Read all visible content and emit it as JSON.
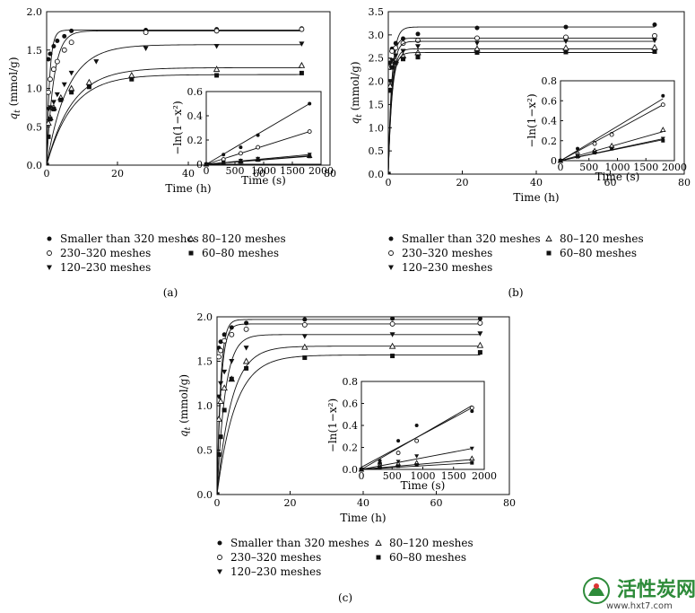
{
  "chart_data": [
    {
      "panel": "(a)",
      "type": "scatter",
      "xlabel": "Time (h)",
      "ylabel_base": "q",
      "ylabel_sub": "t",
      "ylabel_unit": " (mmol/g)",
      "xlim": [
        0,
        80
      ],
      "ylim": [
        0,
        2.0
      ],
      "xticks": [
        0,
        20,
        40,
        60,
        80
      ],
      "yticks": [
        0.0,
        0.5,
        1.0,
        1.5,
        2.0
      ],
      "ytick_labels": [
        "0.0",
        "0.5",
        "1.0",
        "1.5",
        "2.0"
      ],
      "series": [
        {
          "name": "Smaller than 320 meshes",
          "marker": "circle-filled",
          "x": [
            0,
            0.5,
            1,
            2,
            3,
            5,
            7,
            28,
            48,
            72
          ],
          "y": [
            0.0,
            1.38,
            1.45,
            1.55,
            1.62,
            1.68,
            1.75,
            1.76,
            1.77,
            1.78
          ],
          "fit": {
            "qe": 1.76,
            "k": 1.2
          }
        },
        {
          "name": "230–320 meshes",
          "marker": "circle-open",
          "x": [
            0,
            0.5,
            1,
            2,
            3,
            5,
            7,
            28,
            48,
            72
          ],
          "y": [
            0.0,
            0.95,
            1.12,
            1.25,
            1.35,
            1.5,
            1.6,
            1.73,
            1.75,
            1.77
          ],
          "fit": {
            "qe": 1.75,
            "k": 0.5
          }
        },
        {
          "name": "120–230 meshes",
          "marker": "triangle-down-filled",
          "x": [
            0,
            0.5,
            1,
            2,
            3,
            5,
            7,
            14,
            28,
            48,
            72
          ],
          "y": [
            0.0,
            0.73,
            0.75,
            0.82,
            0.92,
            1.05,
            1.2,
            1.35,
            1.52,
            1.55,
            1.58
          ],
          "fit": {
            "qe": 1.57,
            "k": 0.17
          }
        },
        {
          "name": "80–120 meshes",
          "marker": "triangle-up-open",
          "x": [
            0,
            0.5,
            1,
            2,
            4,
            7,
            12,
            24,
            48,
            72
          ],
          "y": [
            0.0,
            0.55,
            0.62,
            0.75,
            0.88,
            1.0,
            1.08,
            1.17,
            1.25,
            1.3
          ],
          "fit": {
            "qe": 1.27,
            "k": 0.14
          }
        },
        {
          "name": "60–80 meshes",
          "marker": "square-filled",
          "x": [
            0,
            0.5,
            1,
            2,
            4,
            7,
            12,
            24,
            48,
            72
          ],
          "y": [
            0.0,
            0.37,
            0.6,
            0.73,
            0.85,
            0.95,
            1.02,
            1.12,
            1.17,
            1.2
          ],
          "fit": {
            "qe": 1.18,
            "k": 0.14
          }
        }
      ],
      "inset": {
        "xlabel": "Time (s)",
        "ylabel": "−ln(1−x²)",
        "xlim": [
          0,
          2000
        ],
        "ylim": [
          0,
          0.6
        ],
        "xticks": [
          0,
          500,
          1000,
          1500,
          2000
        ],
        "yticks": [
          0,
          0.2,
          0.4,
          0.6
        ],
        "ytick_labels": [
          "0",
          "0.2",
          "0.4",
          "0.6"
        ],
        "x": [
          0,
          300,
          600,
          900,
          1800
        ],
        "series": [
          {
            "marker": "circle-filled",
            "y": [
              0,
              0.08,
              0.14,
              0.24,
              0.5
            ],
            "fit": [
              0,
              0.5
            ]
          },
          {
            "marker": "circle-open",
            "y": [
              0,
              0.04,
              0.09,
              0.14,
              0.27
            ],
            "fit": [
              0,
              0.27
            ]
          },
          {
            "marker": "triangle-down-filled",
            "y": [
              0,
              0.015,
              0.03,
              0.045,
              0.08
            ],
            "fit": [
              0,
              0.08
            ]
          },
          {
            "marker": "triangle-up-open",
            "y": [
              0,
              0.012,
              0.025,
              0.04,
              0.07
            ],
            "fit": [
              0,
              0.07
            ]
          },
          {
            "marker": "square-filled",
            "y": [
              0,
              0.01,
              0.02,
              0.035,
              0.065
            ],
            "fit": [
              0,
              0.065
            ]
          }
        ]
      }
    },
    {
      "panel": "(b)",
      "type": "scatter",
      "xlabel": "Time (h)",
      "ylabel_base": "q",
      "ylabel_sub": "t",
      "ylabel_unit": " (mmol/g)",
      "xlim": [
        0,
        80
      ],
      "ylim": [
        0,
        3.5
      ],
      "xticks": [
        0,
        20,
        40,
        60,
        80
      ],
      "yticks": [
        0.0,
        0.5,
        1.0,
        1.5,
        2.0,
        2.5,
        3.0,
        3.5
      ],
      "ytick_labels": [
        "0.0",
        "0.5",
        "1.0",
        "1.5",
        "2.0",
        "2.5",
        "3.0",
        "3.5"
      ],
      "series": [
        {
          "name": "Smaller than 320 meshes",
          "marker": "circle-filled",
          "x": [
            0,
            0.5,
            1,
            2,
            4,
            8,
            24,
            48,
            72
          ],
          "y": [
            0.0,
            2.4,
            2.7,
            2.82,
            2.92,
            3.02,
            3.15,
            3.17,
            3.22
          ],
          "fit": {
            "qe": 3.17,
            "k": 1.0
          }
        },
        {
          "name": "230–320 meshes",
          "marker": "circle-open",
          "x": [
            0,
            0.5,
            1,
            2,
            4,
            8,
            24,
            48,
            72
          ],
          "y": [
            0.0,
            2.3,
            2.65,
            2.72,
            2.82,
            2.88,
            2.93,
            2.95,
            2.98
          ],
          "fit": {
            "qe": 2.93,
            "k": 1.2
          }
        },
        {
          "name": "120–230 meshes",
          "marker": "triangle-down-filled",
          "x": [
            0,
            0.5,
            1,
            2,
            4,
            8,
            24,
            48,
            72
          ],
          "y": [
            0.0,
            2.0,
            2.45,
            2.55,
            2.65,
            2.75,
            2.82,
            2.86,
            2.88
          ],
          "fit": {
            "qe": 2.86,
            "k": 1.0
          }
        },
        {
          "name": "80–120 meshes",
          "marker": "triangle-up-open",
          "x": [
            0,
            0.5,
            1,
            2,
            4,
            8,
            24,
            48,
            72
          ],
          "y": [
            0.0,
            1.9,
            2.35,
            2.45,
            2.55,
            2.62,
            2.7,
            2.72,
            2.73
          ],
          "fit": {
            "qe": 2.7,
            "k": 1.0
          }
        },
        {
          "name": "60–80 meshes",
          "marker": "square-filled",
          "x": [
            0,
            0.5,
            1,
            2,
            4,
            8,
            24,
            48,
            72
          ],
          "y": [
            0.0,
            1.8,
            2.3,
            2.4,
            2.48,
            2.52,
            2.62,
            2.63,
            2.64
          ],
          "fit": {
            "qe": 2.62,
            "k": 1.0
          }
        }
      ],
      "inset": {
        "xlabel": "Time (s)",
        "ylabel": "−ln(1−x²)",
        "xlim": [
          0,
          2000
        ],
        "ylim": [
          0,
          0.8
        ],
        "xticks": [
          0,
          500,
          1000,
          1500,
          2000
        ],
        "yticks": [
          0,
          0.2,
          0.4,
          0.6,
          0.8
        ],
        "ytick_labels": [
          "0",
          "0.2",
          "0.4",
          "0.6",
          "0.8"
        ],
        "x": [
          0,
          300,
          600,
          900,
          1800
        ],
        "series": [
          {
            "marker": "circle-filled",
            "y": [
              0,
              0.12,
              0.18,
              0.27,
              0.65
            ],
            "fit": [
              0,
              0.62
            ]
          },
          {
            "marker": "circle-open",
            "y": [
              0,
              0.07,
              0.17,
              0.26,
              0.56
            ],
            "fit": [
              0,
              0.56
            ]
          },
          {
            "marker": "triangle-down-filled",
            "y": [
              0,
              0.05,
              0.09,
              0.13,
              0.22
            ],
            "fit": [
              0,
              0.22
            ]
          },
          {
            "marker": "triangle-up-open",
            "y": [
              0,
              0.05,
              0.1,
              0.15,
              0.31
            ],
            "fit": [
              0,
              0.29
            ]
          },
          {
            "marker": "square-filled",
            "y": [
              0,
              0.04,
              0.08,
              0.12,
              0.2
            ],
            "fit": [
              0,
              0.21
            ]
          }
        ]
      }
    },
    {
      "panel": "(c)",
      "type": "scatter",
      "xlabel": "Time (h)",
      "ylabel_base": "q",
      "ylabel_sub": "t",
      "ylabel_unit": " (mmol/g)",
      "xlim": [
        0,
        80
      ],
      "ylim": [
        0,
        2.0
      ],
      "xticks": [
        0,
        20,
        40,
        60,
        80
      ],
      "yticks": [
        0.0,
        0.5,
        1.0,
        1.5,
        2.0
      ],
      "ytick_labels": [
        "0.0",
        "0.5",
        "1.0",
        "1.5",
        "2.0"
      ],
      "series": [
        {
          "name": "Smaller than 320 meshes",
          "marker": "circle-filled",
          "x": [
            0,
            0.5,
            1,
            2,
            4,
            8,
            24,
            48,
            72
          ],
          "y": [
            0.0,
            1.65,
            1.72,
            1.8,
            1.88,
            1.93,
            1.97,
            1.98,
            1.98
          ],
          "fit": {
            "qe": 1.97,
            "k": 1.0
          }
        },
        {
          "name": "230–320 meshes",
          "marker": "circle-open",
          "x": [
            0,
            0.5,
            1,
            2,
            4,
            8,
            24,
            48,
            72
          ],
          "y": [
            0.0,
            1.55,
            1.62,
            1.73,
            1.8,
            1.86,
            1.91,
            1.92,
            1.93
          ],
          "fit": {
            "qe": 1.92,
            "k": 0.9
          }
        },
        {
          "name": "120–230 meshes",
          "marker": "triangle-down-filled",
          "x": [
            0,
            0.5,
            1,
            2,
            4,
            8,
            24,
            48,
            72
          ],
          "y": [
            0.0,
            1.1,
            1.25,
            1.38,
            1.5,
            1.65,
            1.78,
            1.8,
            1.81
          ],
          "fit": {
            "qe": 1.8,
            "k": 0.45
          }
        },
        {
          "name": "80–120 meshes",
          "marker": "triangle-up-open",
          "x": [
            0,
            0.5,
            1,
            2,
            4,
            8,
            24,
            48,
            72
          ],
          "y": [
            0.0,
            0.85,
            1.05,
            1.2,
            1.3,
            1.5,
            1.66,
            1.67,
            1.68
          ],
          "fit": {
            "qe": 1.67,
            "k": 0.25
          }
        },
        {
          "name": "60–80 meshes",
          "marker": "square-filled",
          "x": [
            0,
            0.5,
            1,
            2,
            4,
            8,
            24,
            48,
            72
          ],
          "y": [
            0.0,
            0.45,
            0.65,
            0.95,
            1.3,
            1.42,
            1.54,
            1.56,
            1.6
          ],
          "fit": {
            "qe": 1.57,
            "k": 0.2
          }
        }
      ],
      "inset": {
        "xlabel": "Time (s)",
        "ylabel": "−ln(1−x²)",
        "xlim": [
          0,
          2000
        ],
        "ylim": [
          0,
          0.8
        ],
        "xticks": [
          0,
          500,
          1000,
          1500,
          2000
        ],
        "yticks": [
          0,
          0.2,
          0.4,
          0.6,
          0.8
        ],
        "ytick_labels": [
          "0.0",
          "0.2",
          "0.4",
          "0.6",
          "0.8"
        ],
        "x": [
          0,
          300,
          600,
          900,
          1800
        ],
        "series": [
          {
            "marker": "circle-filled",
            "y": [
              0,
              0.08,
              0.26,
              0.4,
              0.53
            ],
            "fit": [
              0.02,
              0.56
            ]
          },
          {
            "marker": "circle-open",
            "y": [
              0,
              0.05,
              0.15,
              0.26,
              0.56
            ],
            "fit": [
              0,
              0.58
            ]
          },
          {
            "marker": "triangle-down-filled",
            "y": [
              0,
              0.05,
              0.07,
              0.12,
              0.19
            ],
            "fit": [
              0,
              0.19
            ]
          },
          {
            "marker": "triangle-up-open",
            "y": [
              0,
              0.03,
              0.05,
              0.06,
              0.1
            ],
            "fit": [
              0,
              0.09
            ]
          },
          {
            "marker": "square-filled",
            "y": [
              0,
              0.02,
              0.03,
              0.04,
              0.06
            ],
            "fit": [
              0,
              0.06
            ]
          }
        ]
      }
    }
  ],
  "watermark": {
    "cn": "活性炭网",
    "url": "www.hxt7.com"
  }
}
